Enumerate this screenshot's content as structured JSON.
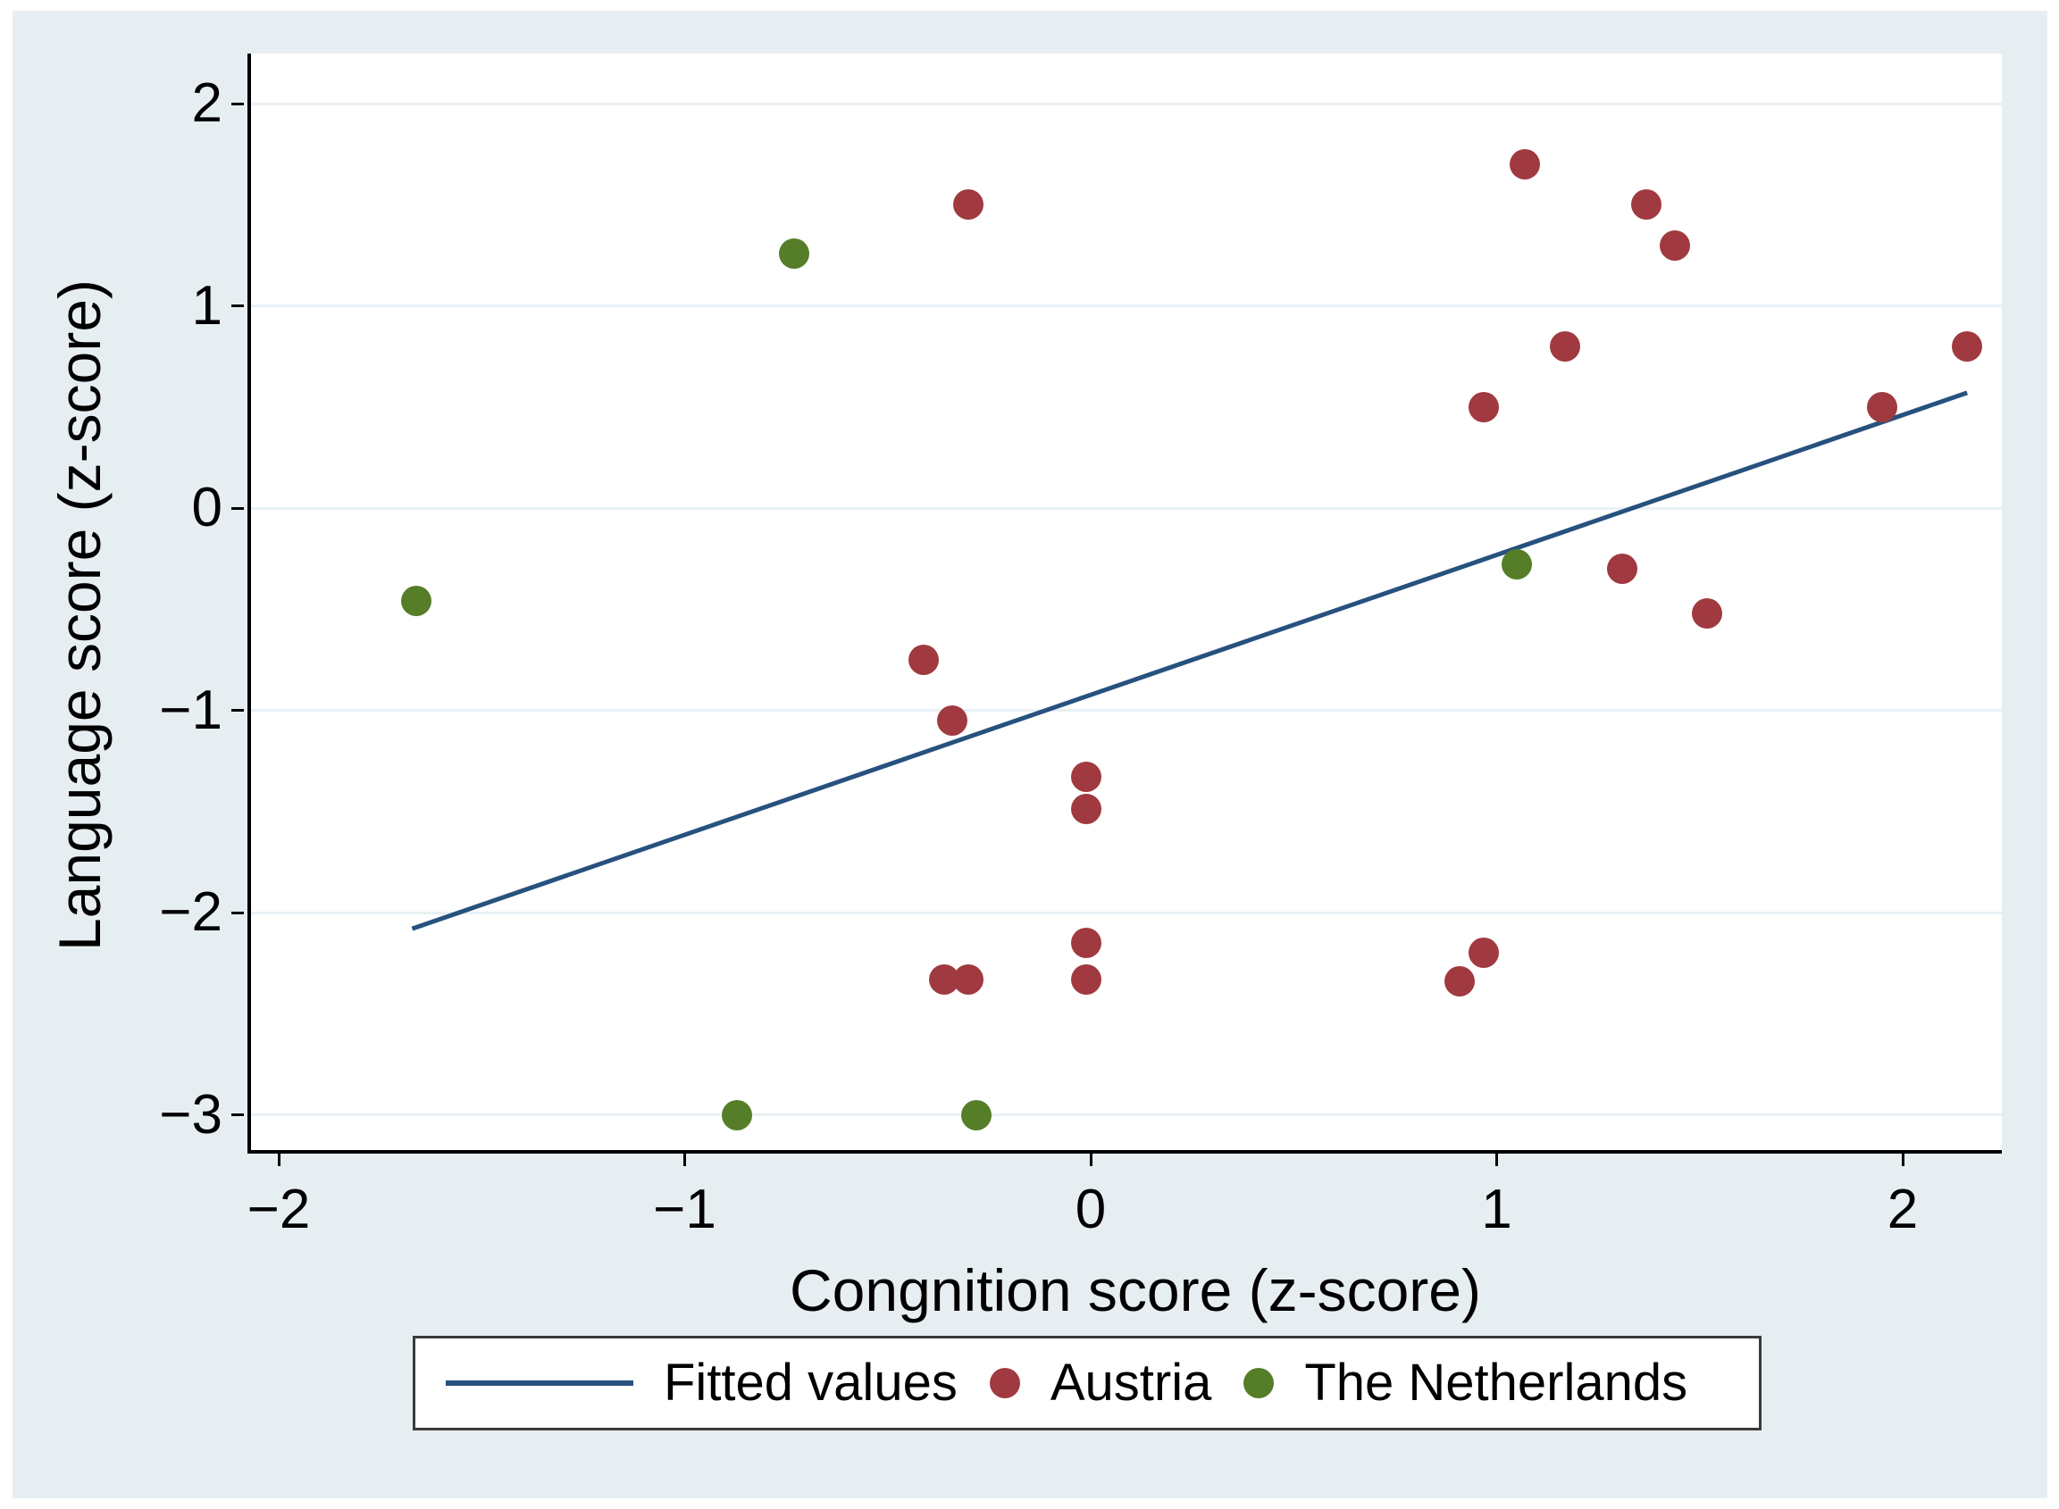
{
  "figure": {
    "panel_background": "#e7eef2",
    "plot_background": "#ffffff",
    "gridline_color": "#e9f1f5",
    "axis_color": "#000000"
  },
  "axes": {
    "x": {
      "title": "Congnition score (z-score)",
      "tick_labels": [
        "−2",
        "−1",
        "0",
        "1",
        "2"
      ],
      "tick_values": [
        -2,
        -1,
        0,
        1,
        2
      ]
    },
    "y": {
      "title": "Language score (z-score)",
      "tick_labels": [
        "2",
        "1",
        "0",
        "−1",
        "−2",
        "−3"
      ],
      "tick_values": [
        2,
        1,
        0,
        -1,
        -2,
        -3
      ]
    }
  },
  "legend": {
    "items": [
      {
        "label": "Fitted values",
        "type": "line",
        "color": "#27517e"
      },
      {
        "label": "Austria",
        "type": "dot",
        "color": "#a03a40"
      },
      {
        "label": "The Netherlands",
        "type": "dot",
        "color": "#567d28"
      }
    ]
  },
  "chart_data": {
    "type": "scatter",
    "title": "",
    "xlabel": "Congnition score (z-score)",
    "ylabel": "Language score (z-score)",
    "xlim": [
      -2.08,
      2.24
    ],
    "ylim": [
      -3.17,
      2.25
    ],
    "grid": "horizontal-only",
    "series": [
      {
        "name": "Austria",
        "marker": "circle",
        "color": "#a03a40",
        "points": [
          [
            -0.31,
            1.5
          ],
          [
            1.06,
            1.7
          ],
          [
            1.36,
            1.5
          ],
          [
            1.43,
            1.3
          ],
          [
            1.16,
            0.8
          ],
          [
            0.96,
            0.5
          ],
          [
            2.15,
            0.8
          ],
          [
            1.94,
            0.5
          ],
          [
            1.3,
            -0.3
          ],
          [
            1.51,
            -0.52
          ],
          [
            -0.42,
            -0.75
          ],
          [
            -0.35,
            -1.05
          ],
          [
            -0.02,
            -1.33
          ],
          [
            -0.02,
            -1.49
          ],
          [
            -0.37,
            -2.33
          ],
          [
            -0.31,
            -2.33
          ],
          [
            -0.02,
            -2.15
          ],
          [
            -0.02,
            -2.33
          ],
          [
            0.9,
            -2.34
          ],
          [
            0.96,
            -2.2
          ]
        ]
      },
      {
        "name": "The Netherlands",
        "marker": "circle",
        "color": "#567d28",
        "points": [
          [
            -0.74,
            1.26
          ],
          [
            -1.67,
            -0.46
          ],
          [
            1.04,
            -0.28
          ],
          [
            -0.88,
            -3.0
          ],
          [
            -0.29,
            -3.0
          ]
        ]
      },
      {
        "name": "Fitted values",
        "marker": "line",
        "color": "#27517e",
        "points": [
          [
            -1.68,
            -2.08
          ],
          [
            2.15,
            0.57
          ]
        ]
      }
    ]
  }
}
